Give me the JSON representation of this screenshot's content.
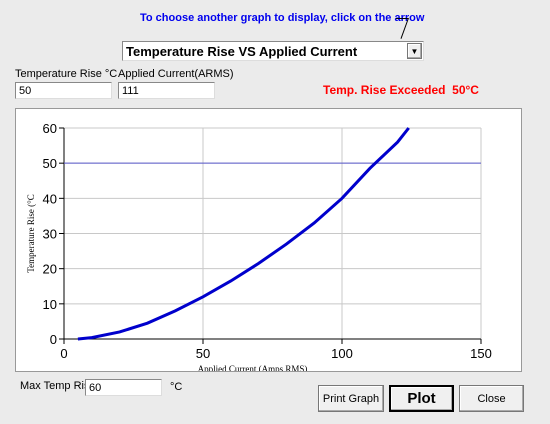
{
  "header": {
    "instruction": "To choose another graph to display, click on the arrow",
    "graph_select": "Temperature Rise VS Applied Current"
  },
  "fields": {
    "temp_rise_label": "Temperature Rise °C",
    "temp_rise_value": "50",
    "current_label": "Applied Current(ARMS)",
    "current_value": "111",
    "max_temp_label": "Max Temp Rise",
    "max_temp_value": "60",
    "max_temp_unit": "°C"
  },
  "warning": "Temp. Rise Exceeded  50°C",
  "buttons": [
    "Print Graph",
    "Plot",
    "Close"
  ],
  "chart_data": {
    "type": "line",
    "x_label": "Applied Current (Amps RMS)",
    "y_label": "Temperature Rise (°C",
    "x": [
      5,
      10,
      20,
      30,
      40,
      50,
      60,
      70,
      80,
      90,
      100,
      110,
      120,
      124
    ],
    "series": [
      {
        "color": "#0000cc",
        "values": [
          0,
          0.4,
          2,
          4.5,
          8,
          12,
          16.5,
          21.5,
          27,
          33,
          40,
          48.5,
          56,
          60
        ]
      }
    ],
    "reference_line": {
      "value": 50,
      "color": "#5a5acd"
    },
    "xlim": [
      0,
      150
    ],
    "xticks": [
      0,
      50,
      100,
      150
    ],
    "ylim": [
      0,
      60
    ],
    "yticks": [
      0,
      10,
      20,
      30,
      40,
      50,
      60
    ],
    "grid": true
  }
}
